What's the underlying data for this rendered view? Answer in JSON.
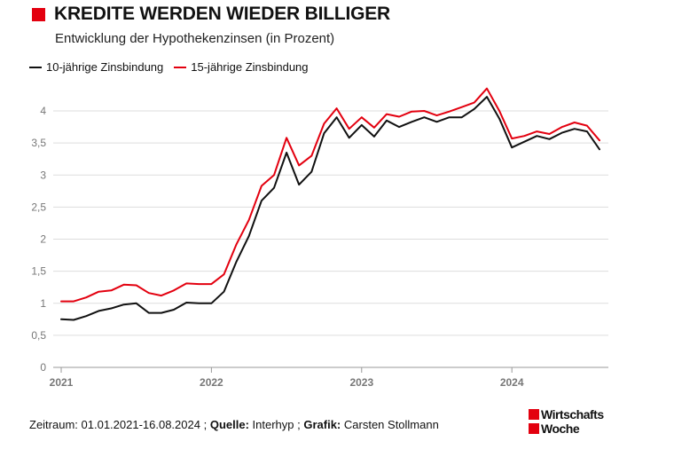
{
  "header": {
    "title": "KREDITE WERDEN WIEDER BILLIGER",
    "subtitle": "Entwicklung der Hypothekenzinsen (in Prozent)"
  },
  "footer": {
    "period": "Zeitraum: 01.01.2021-16.08.2024 ;",
    "source_label": "Quelle:",
    "source": "Interhyp ;",
    "graphic_label": "Grafik:",
    "graphic": "Carsten Stollmann"
  },
  "logo": {
    "line1": "Wirtschafts",
    "line2": "Woche"
  },
  "colors": {
    "accent": "#e3000f",
    "series1": "#111111",
    "series2": "#e3000f",
    "grid": "#dddddd"
  },
  "chart_data": {
    "type": "line",
    "title": "KREDITE WERDEN WIEDER BILLIGER",
    "subtitle": "Entwicklung der Hypothekenzinsen (in Prozent)",
    "xlabel": "",
    "ylabel": "",
    "ylim": [
      0,
      4.5
    ],
    "yticks": [
      "0",
      "0,5",
      "1",
      "1,5",
      "2",
      "2,5",
      "3",
      "3,5",
      "4"
    ],
    "xtick_labels": [
      "2021",
      "2022",
      "2023",
      "2024"
    ],
    "xtick_positions": [
      0,
      12,
      24,
      36
    ],
    "x": [
      0,
      1,
      2,
      3,
      4,
      5,
      6,
      7,
      8,
      9,
      10,
      11,
      12,
      13,
      14,
      15,
      16,
      17,
      18,
      19,
      20,
      21,
      22,
      23,
      24,
      25,
      26,
      27,
      28,
      29,
      30,
      31,
      32,
      33,
      34,
      35,
      36,
      37,
      38,
      39,
      40,
      41,
      42,
      43
    ],
    "legend_position": "top-left",
    "grid": true,
    "series": [
      {
        "name": "10-jährige Zinsbindung",
        "values": [
          0.75,
          0.74,
          0.8,
          0.88,
          0.92,
          0.98,
          1.0,
          0.85,
          0.85,
          0.9,
          1.01,
          1.0,
          1.0,
          1.18,
          1.65,
          2.05,
          2.6,
          2.8,
          3.35,
          2.85,
          3.05,
          3.65,
          3.9,
          3.58,
          3.78,
          3.6,
          3.85,
          3.75,
          3.83,
          3.9,
          3.83,
          3.9,
          3.9,
          4.03,
          4.22,
          3.88,
          3.43,
          3.52,
          3.61,
          3.56,
          3.66,
          3.72,
          3.68,
          3.4
        ]
      },
      {
        "name": "15-jährige Zinsbindung",
        "values": [
          1.03,
          1.03,
          1.09,
          1.18,
          1.2,
          1.29,
          1.28,
          1.16,
          1.12,
          1.2,
          1.31,
          1.3,
          1.3,
          1.45,
          1.92,
          2.3,
          2.83,
          3.0,
          3.58,
          3.15,
          3.3,
          3.8,
          4.04,
          3.72,
          3.9,
          3.74,
          3.95,
          3.91,
          3.99,
          4.0,
          3.93,
          3.99,
          4.06,
          4.13,
          4.35,
          4.0,
          3.57,
          3.61,
          3.68,
          3.64,
          3.75,
          3.82,
          3.77,
          3.54
        ]
      }
    ]
  }
}
